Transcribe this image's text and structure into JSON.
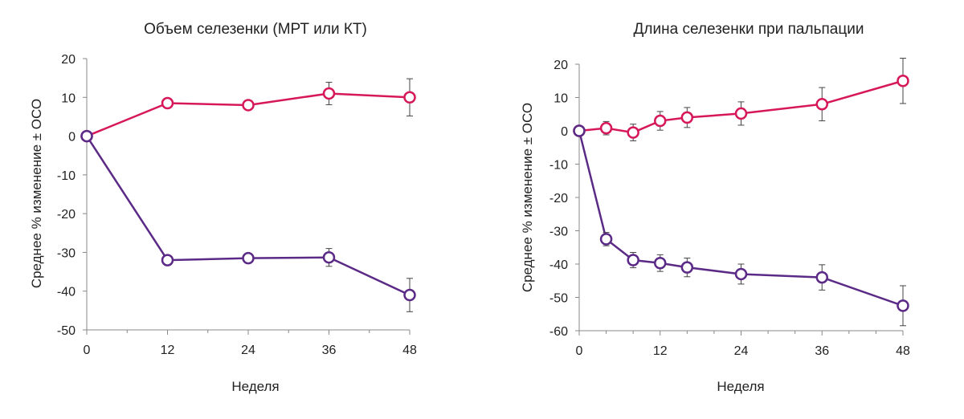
{
  "colors": {
    "pink": "#d6185a",
    "purple": "#5b2a86",
    "axis": "#888888",
    "errorbar": "#444444"
  },
  "chart_data": [
    {
      "type": "line",
      "title": "Объем селезенки (МРТ или КТ)",
      "xlabel": "Неделя",
      "ylabel": "Среднее % изменение ± ОСО",
      "xlim": [
        0,
        48
      ],
      "ylim": [
        -50,
        20
      ],
      "xticks": [
        0,
        12,
        24,
        36,
        48
      ],
      "yticks": [
        20,
        10,
        0,
        -10,
        -20,
        -30,
        -40,
        -50
      ],
      "x_minor_ticks": [
        6,
        18,
        30,
        42
      ],
      "grid": false,
      "series": [
        {
          "color": "pink",
          "x": [
            0,
            12,
            24,
            36,
            48
          ],
          "y": [
            0,
            8.5,
            8,
            11,
            10
          ],
          "err": [
            0,
            0.7,
            1.0,
            2.9,
            4.8
          ]
        },
        {
          "color": "purple",
          "x": [
            0,
            12,
            24,
            36,
            48
          ],
          "y": [
            0,
            -32,
            -31.5,
            -31.3,
            -41
          ],
          "err": [
            0,
            0.7,
            0.7,
            2.3,
            4.3
          ]
        }
      ]
    },
    {
      "type": "line",
      "title": "Длина селезенки при пальпации",
      "xlabel": "Неделя",
      "ylabel": "Среднее % изменение ± ОСО",
      "xlim": [
        0,
        48
      ],
      "ylim": [
        -60,
        20
      ],
      "xticks": [
        0,
        12,
        24,
        36,
        48
      ],
      "yticks": [
        20,
        10,
        0,
        -10,
        -20,
        -30,
        -40,
        -50,
        -60
      ],
      "x_minor_ticks": [
        4,
        8,
        16,
        20,
        28,
        32,
        40,
        44
      ],
      "grid": false,
      "series": [
        {
          "color": "pink",
          "x": [
            0,
            4,
            8,
            12,
            16,
            24,
            36,
            48
          ],
          "y": [
            0,
            0.8,
            -0.5,
            3,
            4,
            5.2,
            8,
            15
          ],
          "err": [
            0,
            2.0,
            2.5,
            2.8,
            3.0,
            3.5,
            5.0,
            6.8
          ]
        },
        {
          "color": "purple",
          "x": [
            0,
            4,
            8,
            12,
            16,
            24,
            36,
            48
          ],
          "y": [
            0,
            -32.5,
            -38.8,
            -39.7,
            -41,
            -43,
            -44,
            -52.5
          ],
          "err": [
            0,
            2.0,
            2.3,
            2.5,
            2.8,
            3.0,
            3.8,
            6.0
          ]
        }
      ]
    }
  ]
}
